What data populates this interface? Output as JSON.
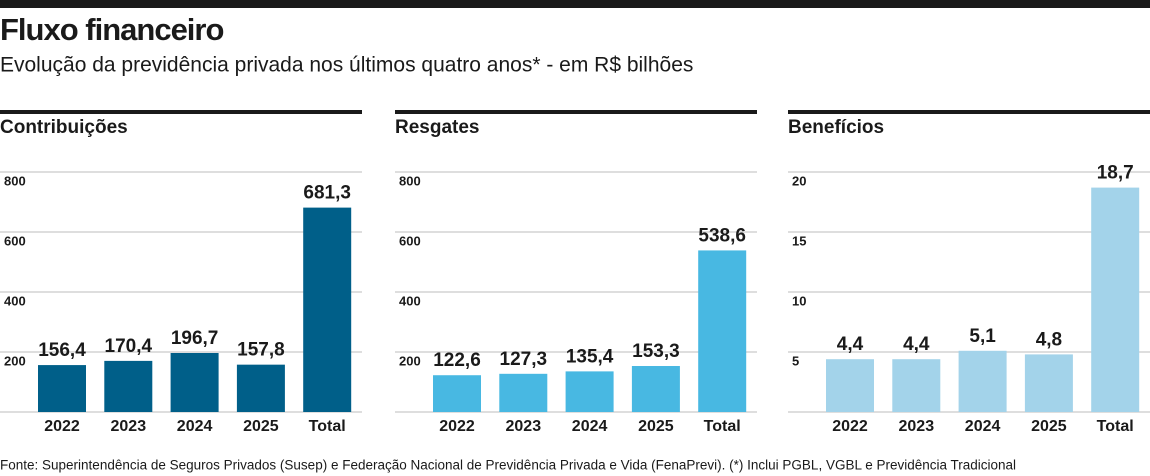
{
  "header": {
    "title": "Fluxo financeiro",
    "subtitle": "Evolução da previdência privada nos últimos quatro anos* - em R$ bilhões"
  },
  "chart_data": [
    {
      "type": "bar",
      "title": "Contribuições",
      "categories": [
        "2022",
        "2023",
        "2024",
        "2025",
        "Total"
      ],
      "values": [
        156.4,
        170.4,
        196.7,
        157.8,
        681.3
      ],
      "value_labels": [
        "156,4",
        "170,4",
        "196,7",
        "157,8",
        "681,3"
      ],
      "color": "#005f89",
      "ylim": [
        0,
        800
      ],
      "yticks": [
        200,
        400,
        600,
        800
      ],
      "grid": true
    },
    {
      "type": "bar",
      "title": "Resgates",
      "categories": [
        "2022",
        "2023",
        "2024",
        "2025",
        "Total"
      ],
      "values": [
        122.6,
        127.3,
        135.4,
        153.3,
        538.6
      ],
      "value_labels": [
        "122,6",
        "127,3",
        "135,4",
        "153,3",
        "538,6"
      ],
      "color": "#48b8e2",
      "ylim": [
        0,
        800
      ],
      "yticks": [
        200,
        400,
        600,
        800
      ],
      "grid": true
    },
    {
      "type": "bar",
      "title": "Benefícios",
      "categories": [
        "2022",
        "2023",
        "2024",
        "2025",
        "Total"
      ],
      "values": [
        4.4,
        4.4,
        5.1,
        4.8,
        18.7
      ],
      "value_labels": [
        "4,4",
        "4,4",
        "5,1",
        "4,8",
        "18,7"
      ],
      "color": "#a3d3ea",
      "ylim": [
        0,
        20
      ],
      "yticks": [
        5,
        10,
        15,
        20
      ],
      "grid": true
    }
  ],
  "footer": {
    "source": "Fonte: Superintendência de Seguros Privados (Susep) e Federação Nacional de Previdência Privada e Vida (FenaPrevi). (*) Inclui PGBL, VGBL e Previdência Tradicional"
  }
}
